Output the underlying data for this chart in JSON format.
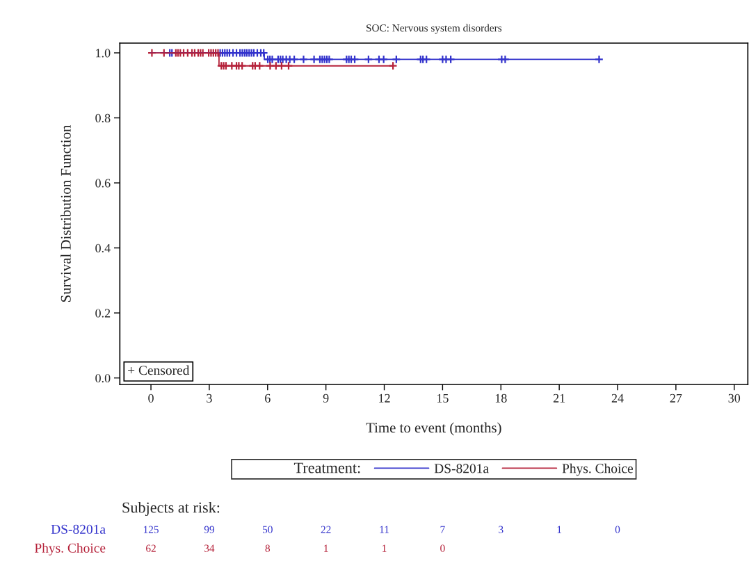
{
  "chart_data": {
    "type": "step",
    "title": "SOC: Nervous system disorders",
    "xlabel": "Time to event (months)",
    "ylabel": "Survival Distribution Function",
    "legend_title": "Treatment:",
    "legend": "bottom",
    "grid": false,
    "xlim": [
      -1.6,
      30.7
    ],
    "xticks": [
      0,
      3,
      6,
      9,
      12,
      15,
      18,
      21,
      24,
      27,
      30
    ],
    "ylim": [
      -0.02,
      1.03
    ],
    "yticks": [
      {
        "value": 0,
        "label": "0.0"
      },
      {
        "value": 0.2,
        "label": "0.2"
      },
      {
        "value": 0.4,
        "label": "0.4"
      },
      {
        "value": 0.6,
        "label": "0.6"
      },
      {
        "value": 0.8,
        "label": "0.8"
      },
      {
        "value": 1,
        "label": "1.0"
      }
    ],
    "series": [
      {
        "name": "DS-8201a",
        "color": "#3333cc",
        "x": [
          0,
          5.83,
          23.05
        ],
        "values": [
          1.0,
          0.98,
          0.98
        ]
      },
      {
        "name": "Phys. Choice",
        "color": "#b5223a",
        "x": [
          0,
          3.5,
          12.45
        ],
        "values": [
          1.0,
          0.96,
          0.96
        ]
      },
      {
        "type": "scatter",
        "marker": "cross",
        "color": "#3333cc",
        "x": [
          0.97,
          1.08,
          3.56,
          3.68,
          3.8,
          3.92,
          4.04,
          4.22,
          4.4,
          4.58,
          4.7,
          4.82,
          4.93,
          5.05,
          5.17,
          5.29,
          5.47,
          5.65,
          5.8,
          6.01,
          6.12,
          6.24,
          6.54,
          6.66,
          6.78,
          6.96,
          7.14,
          7.37,
          7.85,
          8.39,
          8.69,
          8.81,
          8.93,
          9.05,
          9.17,
          10.06,
          10.18,
          10.3,
          10.48,
          11.19,
          11.73,
          11.97,
          12.62,
          13.87,
          13.99,
          14.17,
          15.0,
          15.18,
          15.42,
          18.04,
          18.22,
          23.05
        ],
        "values": [
          1.0,
          1.0,
          1.0,
          1.0,
          1.0,
          1.0,
          1.0,
          1.0,
          1.0,
          1.0,
          1.0,
          1.0,
          1.0,
          1.0,
          1.0,
          1.0,
          1.0,
          1.0,
          1.0,
          0.98,
          0.98,
          0.98,
          0.98,
          0.98,
          0.98,
          0.98,
          0.98,
          0.98,
          0.98,
          0.98,
          0.98,
          0.98,
          0.98,
          0.98,
          0.98,
          0.98,
          0.98,
          0.98,
          0.98,
          0.98,
          0.98,
          0.98,
          0.98,
          0.98,
          0.98,
          0.98,
          0.98,
          0.98,
          0.98,
          0.98,
          0.98,
          0.98
        ]
      },
      {
        "type": "scatter",
        "marker": "cross",
        "color": "#b5223a",
        "x": [
          0.05,
          0.67,
          1.28,
          1.39,
          1.51,
          1.68,
          1.89,
          2.11,
          2.25,
          2.43,
          2.55,
          2.67,
          2.97,
          3.09,
          3.21,
          3.33,
          3.45,
          3.62,
          3.74,
          3.86,
          4.16,
          4.4,
          4.52,
          4.69,
          5.23,
          5.36,
          5.59,
          6.13,
          6.43,
          6.72,
          7.08,
          12.45
        ],
        "values": [
          1.0,
          1.0,
          1.0,
          1.0,
          1.0,
          1.0,
          1.0,
          1.0,
          1.0,
          1.0,
          1.0,
          1.0,
          1.0,
          1.0,
          1.0,
          1.0,
          1.0,
          0.96,
          0.96,
          0.96,
          0.96,
          0.96,
          0.96,
          0.96,
          0.96,
          0.96,
          0.96,
          0.96,
          0.96,
          0.96,
          0.96,
          0.96
        ]
      }
    ],
    "annotations": [
      "+ Censored",
      "Subjects at risk:",
      "125 99 50 22 11 7 3 1 0",
      "62 34 8 1 1 0"
    ]
  }
}
